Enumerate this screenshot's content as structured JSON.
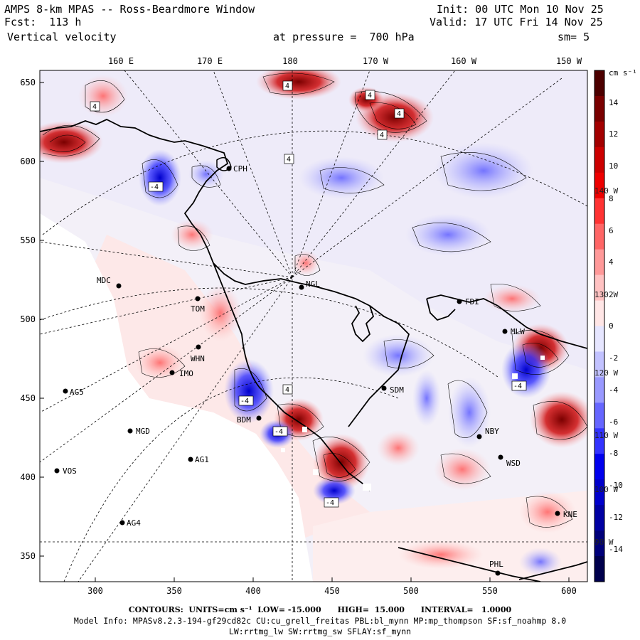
{
  "header": {
    "title": "AMPS 8-km MPAS -- Ross-Beardmore Window",
    "fcst": "Fcst:  113 h",
    "variable": "Vertical velocity",
    "init": "Init: 00 UTC Mon 10 Nov 25",
    "valid": "Valid: 17 UTC Fri 14 Nov 25",
    "pressure": "at pressure =  700 hPa",
    "smoothing": "sm= 5"
  },
  "axes": {
    "top_lon": [
      "160 E",
      "170 E",
      "180",
      "170 W",
      "160 W",
      "150 W"
    ],
    "left": [
      "650",
      "600",
      "550",
      "500",
      "450",
      "400",
      "350"
    ],
    "bottom": [
      "300",
      "350",
      "400",
      "450",
      "500",
      "550",
      "600"
    ]
  },
  "colorbar": {
    "unit": "cm s⁻¹",
    "ticks": [
      "14",
      "12",
      "10",
      "8",
      "6",
      "4",
      "2",
      "0",
      "-2",
      "-4",
      "-6",
      "-8",
      "-10",
      "-12",
      "-14"
    ],
    "overlay": [
      "140 W",
      "130 W",
      "120 W",
      "110 W",
      "100 W",
      "90 W"
    ],
    "colors_top_to_bottom": [
      "#4d0000",
      "#7a0000",
      "#a30000",
      "#cc0000",
      "#ee0000",
      "#ff3333",
      "#ff6666",
      "#ff9999",
      "#ffc2c2",
      "#ffe6e6",
      "#e6e6ff",
      "#c2c2ff",
      "#9999ff",
      "#6666ff",
      "#3333ff",
      "#0000ee",
      "#0000cc",
      "#0000a3",
      "#00007a",
      "#00004d"
    ]
  },
  "stations": [
    {
      "name": "CPH"
    },
    {
      "name": "MDC"
    },
    {
      "name": "NGL"
    },
    {
      "name": "TOM"
    },
    {
      "name": "WHN"
    },
    {
      "name": "IMO"
    },
    {
      "name": "AG5"
    },
    {
      "name": "MGD"
    },
    {
      "name": "AG1"
    },
    {
      "name": "VOS"
    },
    {
      "name": "AG4"
    },
    {
      "name": "SDM"
    },
    {
      "name": "BDM"
    },
    {
      "name": "NBY"
    },
    {
      "name": "FDI"
    },
    {
      "name": "PHL"
    },
    {
      "name": "KNE"
    },
    {
      "name": "WSD"
    },
    {
      "name": "MLW"
    }
  ],
  "contour_labels": [
    "4",
    "4",
    "4",
    "4",
    "4",
    "4",
    "-4",
    "-4",
    "-4",
    "-4",
    "4",
    "-4"
  ],
  "footer": {
    "contours": "CONTOURS:  UNITS=cm s⁻¹  LOW= -15.000      HIGH=  15.000      INTERVAL=   1.0000",
    "model": "Model Info: MPASv8.2.3-194-gf29cd82c CU:cu_grell_freitas PBL:bl_mynn MP:mp_thompson SF:sf_noahmp 8.0",
    "model2": "LW:rrtmg_lw SW:rrtmg_sw SFLAY:sf_mynn"
  }
}
